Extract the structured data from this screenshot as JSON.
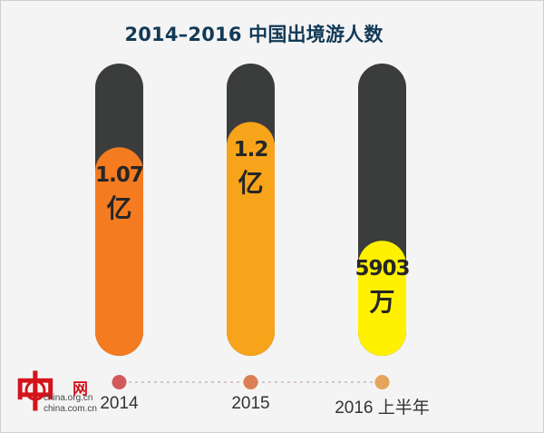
{
  "chart_data": {
    "type": "bar",
    "title": "2014–2016 中国出境游人数",
    "categories": [
      "2014",
      "2015",
      "2016 上半年"
    ],
    "values_in_wan": [
      10700,
      12000,
      5903
    ],
    "value_labels": [
      {
        "number": "1.07",
        "unit": "亿"
      },
      {
        "number": "1.2",
        "unit": "亿"
      },
      {
        "number": "5903",
        "unit": "万"
      }
    ],
    "ylim": [
      0,
      15000
    ],
    "bar_colors": [
      "#f47b20",
      "#f8a41b",
      "#fff100"
    ],
    "track_color": "#3b3c3c",
    "dot_colors": [
      "#d2595a",
      "#db7e54",
      "#e6a45b"
    ],
    "grid": false
  },
  "watermark": {
    "brand_cn": "网",
    "url_1": "china.org.cn",
    "url_2": "china.com.cn"
  }
}
